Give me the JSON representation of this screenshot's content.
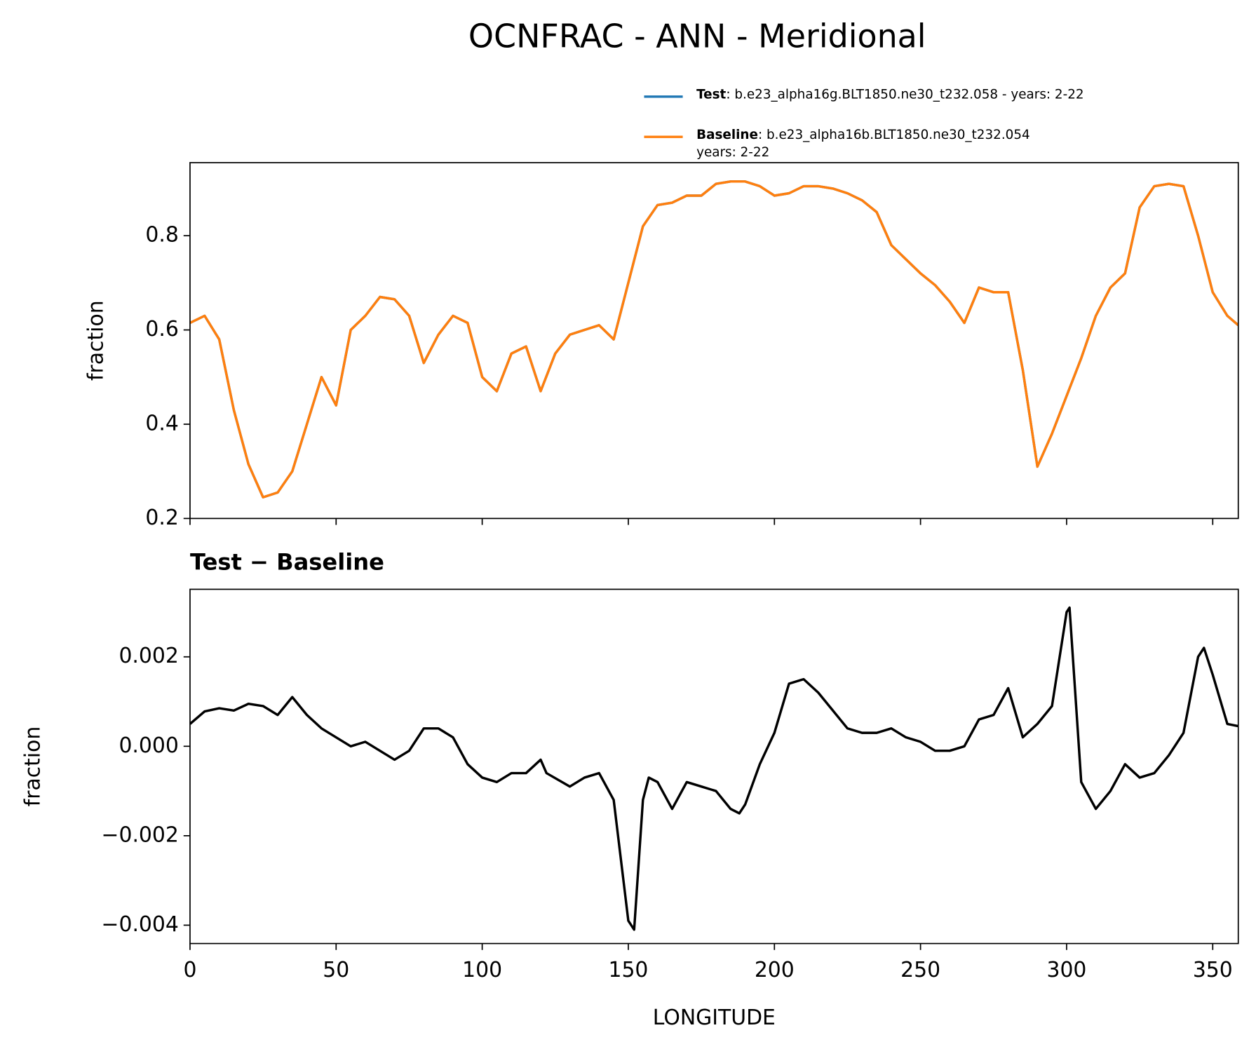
{
  "chart_data": [
    {
      "type": "line",
      "title": "OCNFRAC - ANN - Meridional",
      "ylabel": "fraction",
      "x": [
        0,
        5,
        10,
        15,
        20,
        25,
        30,
        35,
        40,
        45,
        50,
        55,
        60,
        65,
        70,
        75,
        80,
        85,
        90,
        95,
        100,
        105,
        110,
        115,
        120,
        125,
        130,
        135,
        140,
        145,
        150,
        155,
        160,
        165,
        170,
        175,
        180,
        185,
        190,
        195,
        200,
        205,
        210,
        215,
        220,
        225,
        230,
        235,
        240,
        245,
        250,
        255,
        260,
        265,
        270,
        275,
        280,
        285,
        290,
        295,
        300,
        305,
        310,
        315,
        320,
        325,
        330,
        335,
        340,
        345,
        350,
        355,
        358.75
      ],
      "series": [
        {
          "name": "Test",
          "detail": [
            ": b.e23_alpha16g.BLT1850.ne30_t232.058 - years: 2-22"
          ],
          "color": "#1f77b4",
          "values": [
            0.615,
            0.63,
            0.58,
            0.43,
            0.315,
            0.245,
            0.255,
            0.3,
            0.4,
            0.5,
            0.44,
            0.6,
            0.63,
            0.67,
            0.665,
            0.63,
            0.53,
            0.59,
            0.63,
            0.615,
            0.5,
            0.47,
            0.55,
            0.565,
            0.47,
            0.55,
            0.59,
            0.6,
            0.61,
            0.58,
            0.7,
            0.82,
            0.865,
            0.87,
            0.885,
            0.885,
            0.91,
            0.915,
            0.915,
            0.905,
            0.885,
            0.89,
            0.905,
            0.905,
            0.9,
            0.89,
            0.875,
            0.85,
            0.78,
            0.75,
            0.72,
            0.695,
            0.66,
            0.615,
            0.69,
            0.68,
            0.68,
            0.515,
            0.31,
            0.38,
            0.46,
            0.54,
            0.63,
            0.69,
            0.72,
            0.86,
            0.905,
            0.91,
            0.905,
            0.8,
            0.68,
            0.63,
            0.61
          ]
        },
        {
          "name": "Baseline",
          "detail": [
            ": b.e23_alpha16b.BLT1850.ne30_t232.054",
            "years: 2-22"
          ],
          "color": "#ff7f0e",
          "values": [
            0.615,
            0.63,
            0.58,
            0.43,
            0.315,
            0.245,
            0.255,
            0.3,
            0.4,
            0.5,
            0.44,
            0.6,
            0.63,
            0.67,
            0.665,
            0.63,
            0.53,
            0.59,
            0.63,
            0.615,
            0.5,
            0.47,
            0.55,
            0.565,
            0.47,
            0.55,
            0.59,
            0.6,
            0.61,
            0.58,
            0.7,
            0.82,
            0.865,
            0.87,
            0.885,
            0.885,
            0.91,
            0.915,
            0.915,
            0.905,
            0.885,
            0.89,
            0.905,
            0.905,
            0.9,
            0.89,
            0.875,
            0.85,
            0.78,
            0.75,
            0.72,
            0.695,
            0.66,
            0.615,
            0.69,
            0.68,
            0.68,
            0.515,
            0.31,
            0.38,
            0.46,
            0.54,
            0.63,
            0.69,
            0.72,
            0.86,
            0.905,
            0.91,
            0.905,
            0.8,
            0.68,
            0.63,
            0.61
          ]
        }
      ],
      "xlim": [
        0,
        358.75
      ],
      "xticks": [
        0,
        50,
        100,
        150,
        200,
        250,
        300,
        350
      ],
      "ylim": [
        0.2,
        0.955
      ],
      "yticks": [
        0.2,
        0.4,
        0.6,
        0.8
      ]
    },
    {
      "type": "line",
      "title": "Test − Baseline",
      "ylabel": "fraction",
      "xlabel": "LONGITUDE",
      "x": [
        0,
        5,
        10,
        15,
        20,
        25,
        30,
        35,
        40,
        45,
        50,
        55,
        60,
        65,
        70,
        75,
        80,
        85,
        90,
        95,
        100,
        105,
        110,
        115,
        120,
        122,
        130,
        135,
        140,
        145,
        150,
        152,
        155,
        157,
        160,
        165,
        170,
        175,
        180,
        185,
        188,
        190,
        195,
        200,
        205,
        210,
        215,
        220,
        225,
        230,
        235,
        240,
        245,
        250,
        255,
        260,
        265,
        270,
        275,
        280,
        285,
        290,
        295,
        300,
        301,
        305,
        310,
        315,
        320,
        325,
        330,
        335,
        340,
        345,
        347,
        350,
        355,
        358.75
      ],
      "series": [
        {
          "color": "#000000",
          "values": [
            0.0005,
            0.00078,
            0.00085,
            0.0008,
            0.00095,
            0.0009,
            0.0007,
            0.0011,
            0.0007,
            0.0004,
            0.0002,
            0.0,
            0.0001,
            -0.0001,
            -0.0003,
            -0.0001,
            0.0004,
            0.0004,
            0.0002,
            -0.0004,
            -0.0007,
            -0.0008,
            -0.0006,
            -0.0006,
            -0.0003,
            -0.0006,
            -0.0009,
            -0.0007,
            -0.0006,
            -0.0012,
            -0.0039,
            -0.0041,
            -0.0012,
            -0.0007,
            -0.0008,
            -0.0014,
            -0.0008,
            -0.0009,
            -0.001,
            -0.0014,
            -0.0015,
            -0.0013,
            -0.0004,
            0.0003,
            0.0014,
            0.0015,
            0.0012,
            0.0008,
            0.0004,
            0.0003,
            0.0003,
            0.0004,
            0.0002,
            0.0001,
            -0.0001,
            -0.0001,
            0.0,
            0.0006,
            0.0007,
            0.0013,
            0.0002,
            0.0005,
            0.0009,
            0.003,
            0.0031,
            -0.0008,
            -0.0014,
            -0.001,
            -0.0004,
            -0.0007,
            -0.0006,
            -0.0002,
            0.0003,
            0.002,
            0.0022,
            0.0016,
            0.0005,
            0.00045
          ]
        }
      ],
      "xlim": [
        0,
        358.75
      ],
      "xticks": [
        0,
        50,
        100,
        150,
        200,
        250,
        300,
        350
      ],
      "ylim": [
        -0.00441,
        0.00351
      ],
      "yticks": [
        {
          "value": -0.004,
          "label": "−0.004"
        },
        {
          "value": -0.002,
          "label": "−0.002"
        },
        {
          "value": 0,
          "label": "0.000"
        },
        0.002
      ]
    }
  ]
}
